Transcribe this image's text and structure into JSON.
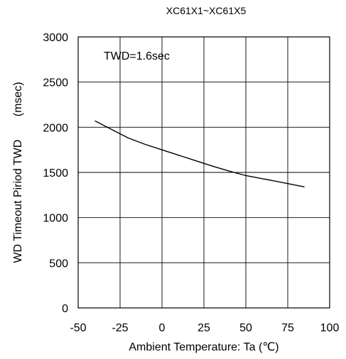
{
  "chart_data": {
    "type": "line",
    "title": "XC61X1~XC61X5",
    "xlabel": "Ambient Temperature: Ta (℃)",
    "ylabel": "WD Timeout Piriod TWD",
    "ylabel_unit": "(msec)",
    "xlim": [
      -50,
      100
    ],
    "ylim": [
      0,
      3000
    ],
    "x_ticks": [
      -50,
      -25,
      0,
      25,
      50,
      75,
      100
    ],
    "y_ticks": [
      0,
      500,
      1000,
      1500,
      2000,
      2500,
      3000
    ],
    "grid": true,
    "annotation": "TWD=1.6sec",
    "series": [
      {
        "x": [
          -40,
          -30,
          -20,
          -10,
          0,
          10,
          20,
          30,
          40,
          50,
          60,
          70,
          85
        ],
        "y": [
          2070,
          1975,
          1880,
          1810,
          1750,
          1690,
          1630,
          1570,
          1515,
          1465,
          1430,
          1395,
          1340
        ]
      }
    ],
    "line_color": "#000000"
  }
}
